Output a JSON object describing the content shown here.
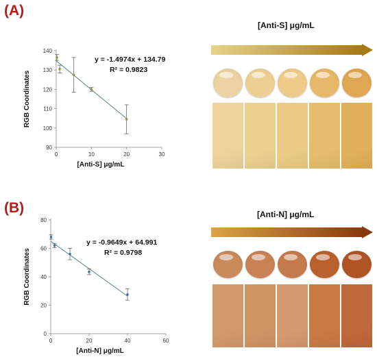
{
  "panels": [
    {
      "label": "(A)",
      "concentration_title": "[Anti-S] μg/mL",
      "arrow_colors": [
        "#e6d38a",
        "#a77a12"
      ],
      "drop_colors": [
        "#ecd3a3",
        "#eecf93",
        "#eecb88",
        "#e8b86a",
        "#dfa752"
      ],
      "swatch_colors": [
        "#eed39a",
        "#ecd08f",
        "#ebcb85",
        "#e6bd6c",
        "#e0b05a"
      ]
    },
    {
      "label": "(B)",
      "concentration_title": "[Anti-N] μg/mL",
      "arrow_colors": [
        "#d9a646",
        "#8a3a0e"
      ],
      "drop_colors": [
        "#c98a5c",
        "#c88255",
        "#c57a4c",
        "#b9612c",
        "#b05424"
      ],
      "swatch_colors": [
        "#d29a6a",
        "#cf9464",
        "#d49a70",
        "#c97a45",
        "#c0683a"
      ]
    }
  ],
  "chart_data": [
    {
      "type": "scatter",
      "title": "",
      "xlabel": "[Anti-S] μg/mL",
      "ylabel": "RGB Coordinates",
      "xlim": [
        0,
        30
      ],
      "ylim": [
        90,
        140
      ],
      "xticks": [
        0,
        10,
        20,
        30
      ],
      "yticks": [
        90,
        100,
        110,
        120,
        130,
        140
      ],
      "points": [
        {
          "x": 0.2,
          "y": 136.5,
          "err": 1.5
        },
        {
          "x": 1,
          "y": 130.5,
          "err": 2
        },
        {
          "x": 5,
          "y": 127.5,
          "err": 9
        },
        {
          "x": 10,
          "y": 120,
          "err": 1
        },
        {
          "x": 20,
          "y": 104.5,
          "err": 7.5
        }
      ],
      "fit": {
        "slope": -1.4974,
        "intercept": 134.79,
        "x_range": [
          0,
          20
        ]
      },
      "equation": "y = -1.4974x + 134.79",
      "r2": "R² = 0.9823",
      "marker_color": "#8a9a3a",
      "line_color": "#4d8a84"
    },
    {
      "type": "scatter",
      "title": "",
      "xlabel": "[Anti-N] μg/mL",
      "ylabel": "RGB Coordinates",
      "xlim": [
        0,
        60
      ],
      "ylim": [
        0,
        80
      ],
      "xticks": [
        0,
        20,
        40,
        60
      ],
      "yticks": [
        0,
        20,
        40,
        60,
        80
      ],
      "points": [
        {
          "x": 0.2,
          "y": 68,
          "err": 1.5
        },
        {
          "x": 2,
          "y": 62,
          "err": 1.5
        },
        {
          "x": 10,
          "y": 56,
          "err": 4
        },
        {
          "x": 20,
          "y": 43.5,
          "err": 2
        },
        {
          "x": 40,
          "y": 27.5,
          "err": 4
        }
      ],
      "fit": {
        "slope": -0.9649,
        "intercept": 64.991,
        "x_range": [
          0,
          40
        ]
      },
      "equation": "y = -0.9649x + 64.991",
      "r2": "R² = 0.9798",
      "marker_color": "#3a6fb0",
      "line_color": "#4d8a84"
    }
  ]
}
